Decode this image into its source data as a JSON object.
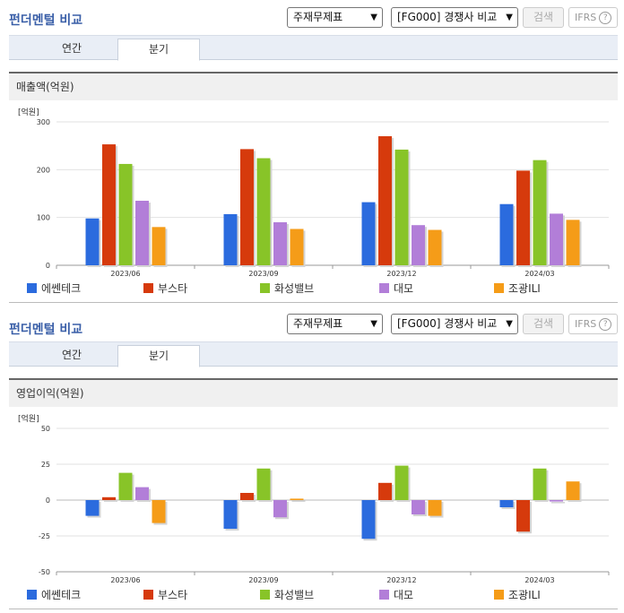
{
  "panels": [
    {
      "title": "펀더멘털 비교",
      "select1": "주재무제표",
      "select2": "[FG000] 경쟁사 비교",
      "search_label": "검색",
      "ifrs_label": "IFRS",
      "tabs": [
        "연간",
        "분기"
      ],
      "section_title": "매출액(억원)",
      "unit": "[억원]"
    },
    {
      "title": "펀더멘털 비교",
      "select1": "주재무제표",
      "select2": "[FG000] 경쟁사 비교",
      "search_label": "검색",
      "ifrs_label": "IFRS",
      "tabs": [
        "연간",
        "분기"
      ],
      "section_title": "영업이익(억원)",
      "unit": "[억원]"
    }
  ],
  "chart_data": [
    {
      "type": "bar",
      "title": "매출액(억원)",
      "ylabel": "[억원]",
      "categories": [
        "2023/06",
        "2023/09",
        "2023/12",
        "2024/03"
      ],
      "ylim": [
        0,
        300
      ],
      "yticks": [
        0,
        100,
        200,
        300
      ],
      "series": [
        {
          "name": "에쎈테크",
          "color": "#2b6bde",
          "values": [
            98,
            107,
            132,
            128
          ]
        },
        {
          "name": "부스타",
          "color": "#d63a0c",
          "values": [
            253,
            243,
            270,
            198
          ]
        },
        {
          "name": "화성밸브",
          "color": "#88c428",
          "values": [
            212,
            224,
            242,
            220
          ]
        },
        {
          "name": "대모",
          "color": "#b27ed8",
          "values": [
            135,
            90,
            84,
            108
          ]
        },
        {
          "name": "조광ILI",
          "color": "#f59c18",
          "values": [
            80,
            76,
            74,
            95
          ]
        }
      ]
    },
    {
      "type": "bar",
      "title": "영업이익(억원)",
      "ylabel": "[억원]",
      "categories": [
        "2023/06",
        "2023/09",
        "2023/12",
        "2024/03"
      ],
      "ylim": [
        -50,
        50
      ],
      "yticks": [
        -50,
        -25,
        0,
        25,
        50
      ],
      "series": [
        {
          "name": "에쎈테크",
          "color": "#2b6bde",
          "values": [
            -11,
            -20,
            -27,
            -5
          ]
        },
        {
          "name": "부스타",
          "color": "#d63a0c",
          "values": [
            2,
            5,
            12,
            -22
          ]
        },
        {
          "name": "화성밸브",
          "color": "#88c428",
          "values": [
            19,
            22,
            24,
            22
          ]
        },
        {
          "name": "대모",
          "color": "#b27ed8",
          "values": [
            9,
            -12,
            -10,
            -1
          ]
        },
        {
          "name": "조광ILI",
          "color": "#f59c18",
          "values": [
            -16,
            1,
            -11,
            13
          ]
        }
      ]
    }
  ]
}
